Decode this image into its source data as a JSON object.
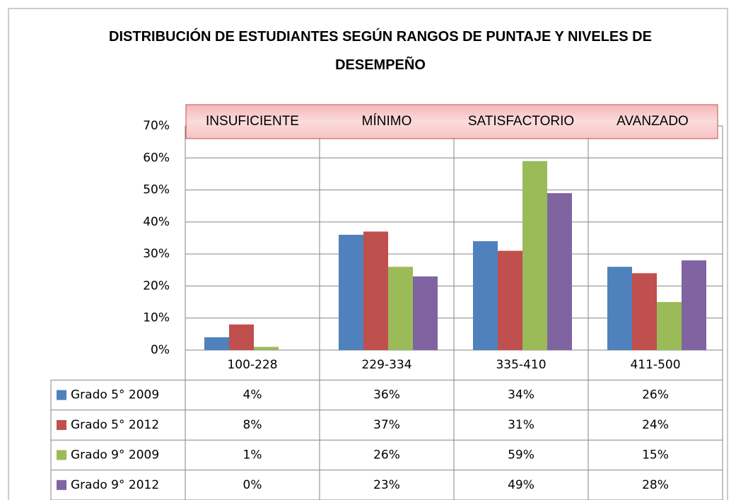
{
  "chart_data": {
    "type": "bar",
    "title": "DISTRIBUCIÓN DE ESTUDIANTES SEGÚN RANGOS DE PUNTAJE Y NIVELES DE DESEMPEÑO",
    "annotations": [
      "INSUFICIENTE",
      "MÍNIMO",
      "SATISFACTORIO",
      "AVANZADO"
    ],
    "categories": [
      "100-228",
      "229-334",
      "335-410",
      "411-500"
    ],
    "series": [
      {
        "name": "Grado 5° 2009",
        "color": "#4f81bd",
        "values": [
          4,
          36,
          34,
          26
        ],
        "value_labels": [
          "4%",
          "36%",
          "34%",
          "26%"
        ]
      },
      {
        "name": "Grado 5° 2012",
        "color": "#c0504d",
        "values": [
          8,
          37,
          31,
          24
        ],
        "value_labels": [
          "8%",
          "37%",
          "31%",
          "24%"
        ]
      },
      {
        "name": "Grado 9° 2009",
        "color": "#9bbb59",
        "values": [
          1,
          26,
          59,
          15
        ],
        "value_labels": [
          "1%",
          "26%",
          "59%",
          "15%"
        ]
      },
      {
        "name": "Grado 9° 2012",
        "color": "#8064a2",
        "values": [
          0,
          23,
          49,
          28
        ],
        "value_labels": [
          "0%",
          "23%",
          "49%",
          "28%"
        ]
      }
    ],
    "ylim": [
      0,
      70
    ],
    "yticks": [
      {
        "value": 0,
        "label": "0%"
      },
      {
        "value": 10,
        "label": "10%"
      },
      {
        "value": 20,
        "label": "20%"
      },
      {
        "value": 30,
        "label": "30%"
      },
      {
        "value": 40,
        "label": "40%"
      },
      {
        "value": 50,
        "label": "50%"
      },
      {
        "value": 60,
        "label": "60%"
      },
      {
        "value": 70,
        "label": "70%"
      }
    ],
    "grid": true,
    "data_table": true
  }
}
